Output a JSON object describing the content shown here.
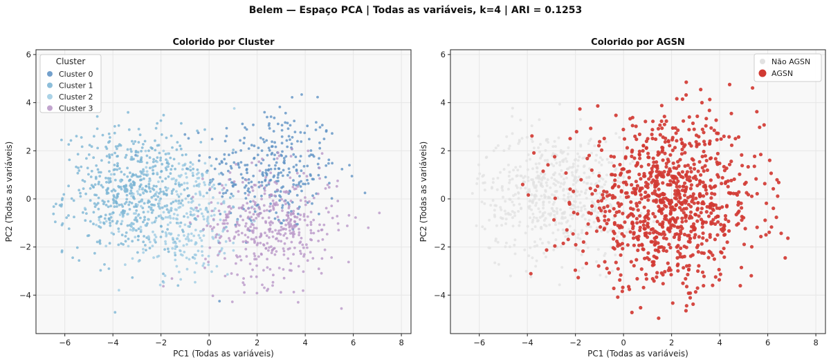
{
  "figure": {
    "suptitle": "Belem  —  Espaço PCA  |  Todas as variáveis, k=4  |  ARI = 0.1253"
  },
  "colors": {
    "cluster0": "#5b8fc3",
    "cluster1": "#79b3d4",
    "cluster2": "#9ccbe3",
    "cluster3": "#b795c6",
    "non_agsn": "#e2e2e2",
    "agsn": "#d13a33",
    "plot_bg": "#f8f8f8",
    "grid": "#e6e6e6"
  },
  "chart_data": [
    {
      "type": "scatter",
      "title": "Colorido por Cluster",
      "xlabel": "PC1 (Todas as variáveis)",
      "ylabel": "PC2 (Todas as variáveis)",
      "xlim": [
        -7.2,
        8.4
      ],
      "ylim": [
        -5.6,
        6.2
      ],
      "xticks": [
        -6,
        -4,
        -2,
        0,
        2,
        4,
        6,
        8
      ],
      "yticks": [
        -4,
        -2,
        0,
        2,
        4,
        6
      ],
      "grid": true,
      "legend": {
        "title": "Cluster",
        "position": "upper-left"
      },
      "series": [
        {
          "name": "Cluster 0",
          "color_key": "cluster0",
          "center": [
            2.6,
            1.2
          ],
          "spread": [
            1.4,
            1.3
          ],
          "n": 320
        },
        {
          "name": "Cluster 1",
          "color_key": "cluster1",
          "center": [
            -3.2,
            0.3
          ],
          "spread": [
            1.4,
            1.3
          ],
          "n": 560
        },
        {
          "name": "Cluster 2",
          "color_key": "cluster2",
          "center": [
            -1.1,
            -0.7
          ],
          "spread": [
            1.3,
            1.3
          ],
          "n": 300
        },
        {
          "name": "Cluster 3",
          "color_key": "cluster3",
          "center": [
            2.6,
            -1.1
          ],
          "spread": [
            1.4,
            1.2
          ],
          "n": 420
        }
      ],
      "note_points": "points are a representative reproduction of the scatter distribution"
    },
    {
      "type": "scatter",
      "title": "Colorido por AGSN",
      "xlabel": "PC1 (Todas as variáveis)",
      "ylabel": "PC2 (Todas as variáveis)",
      "xlim": [
        -7.2,
        8.4
      ],
      "ylim": [
        -5.6,
        6.2
      ],
      "xticks": [
        -6,
        -4,
        -2,
        0,
        2,
        4,
        6,
        8
      ],
      "yticks": [
        -4,
        -2,
        0,
        2,
        4,
        6
      ],
      "grid": true,
      "legend": {
        "position": "upper-right"
      },
      "series": [
        {
          "name": "Não AGSN",
          "color_key": "non_agsn",
          "center": [
            -2.8,
            0.2
          ],
          "spread": [
            1.6,
            1.3
          ],
          "n": 600
        },
        {
          "name": "AGSN",
          "color_key": "agsn",
          "center": [
            1.9,
            -0.2
          ],
          "spread": [
            1.9,
            1.7
          ],
          "n": 950
        }
      ]
    }
  ]
}
